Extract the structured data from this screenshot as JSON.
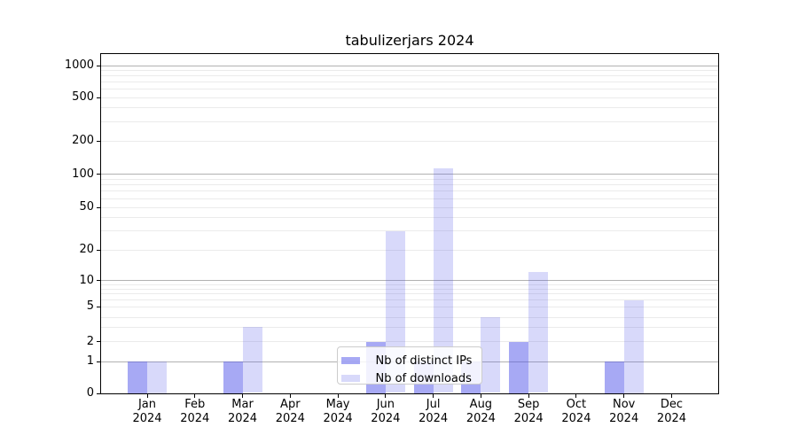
{
  "title": "tabulizerjars 2024",
  "chart_data": {
    "type": "bar",
    "title": "tabulizerjars 2024",
    "year_label": "2024",
    "categories": [
      "Jan",
      "Feb",
      "Mar",
      "Apr",
      "May",
      "Jun",
      "Jul",
      "Aug",
      "Sep",
      "Oct",
      "Nov",
      "Dec"
    ],
    "series": [
      {
        "name": "Nb of distinct IPs",
        "color": "rgba(79,83,233,0.50)",
        "values": [
          1,
          0,
          1,
          0,
          0,
          2,
          1,
          1,
          2,
          0,
          1,
          0
        ]
      },
      {
        "name": "Nb of downloads",
        "color": "rgba(79,83,233,0.22)",
        "values": [
          1,
          0,
          3,
          0,
          0,
          30,
          113,
          4,
          12,
          0,
          6,
          0
        ]
      }
    ],
    "y_ticks": [
      0,
      1,
      2,
      5,
      10,
      20,
      50,
      100,
      200,
      500,
      1000
    ],
    "y_major_gridlines": [
      1,
      10,
      100,
      1000
    ],
    "yscale": "log-like",
    "ylim": [
      0,
      1400
    ],
    "grid": "horizontal major and minor",
    "legend_position": "lower-center",
    "colors": {
      "bar_base": "#4f53e9",
      "major_grid": "#b1b1b1",
      "minor_grid": "#ebebeb",
      "axis": "#000000",
      "text": "#000000",
      "legend_border": "#cccccc"
    }
  }
}
